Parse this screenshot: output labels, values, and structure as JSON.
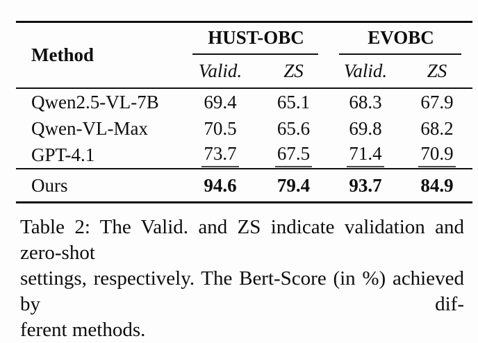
{
  "page": {
    "background": "#fdfdfd",
    "text_color": "#0d0d0d"
  },
  "table": {
    "header": {
      "method": "Method",
      "groups": [
        {
          "label": "HUST-OBC",
          "subcols": [
            "Valid.",
            "ZS"
          ]
        },
        {
          "label": "EVOBC",
          "subcols": [
            "Valid.",
            "ZS"
          ]
        }
      ]
    },
    "rows": [
      {
        "method": "Qwen2.5-VL-7B",
        "values": [
          "69.4",
          "65.1",
          "68.3",
          "67.9"
        ],
        "emphasis": "none"
      },
      {
        "method": "Qwen-VL-Max",
        "values": [
          "70.5",
          "65.6",
          "69.8",
          "68.2"
        ],
        "emphasis": "none"
      },
      {
        "method": "GPT-4.1",
        "values": [
          "73.7",
          "67.5",
          "71.4",
          "70.9"
        ],
        "emphasis": "underline"
      }
    ],
    "final_row": {
      "method": "Ours",
      "values": [
        "94.6",
        "79.4",
        "93.7",
        "84.9"
      ],
      "emphasis": "bold"
    }
  },
  "caption": {
    "lines": [
      "Table 2: The Valid. and ZS indicate validation and zero-shot",
      "settings, respectively. The Bert-Score (in %) achieved by dif-",
      "ferent methods."
    ],
    "full_text": "Table 2: The Valid. and ZS indicate validation and zero-shot settings, respectively. The Bert-Score (in %) achieved by different methods."
  }
}
